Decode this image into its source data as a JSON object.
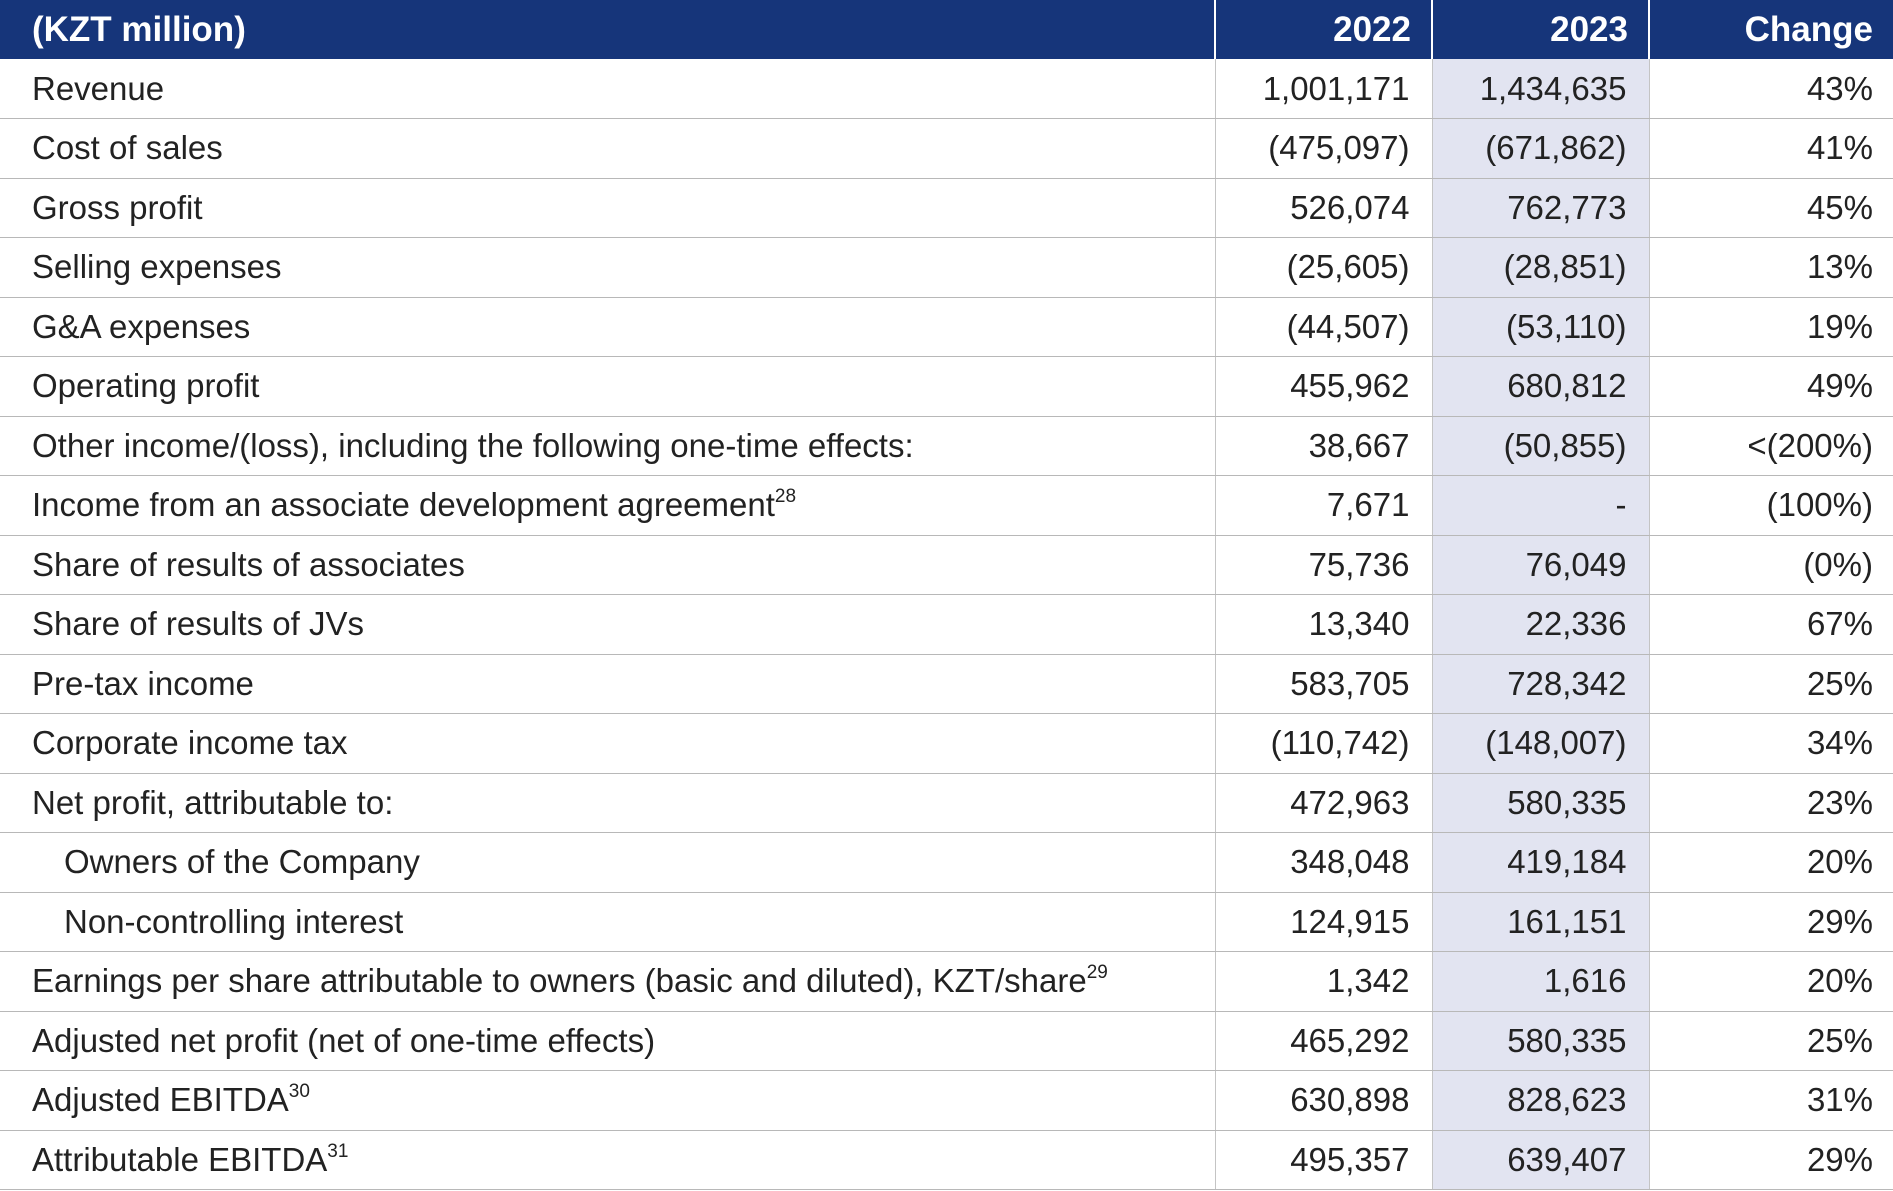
{
  "header": {
    "unit_label": "(KZT million)",
    "col_2022": "2022",
    "col_2023": "2023",
    "col_change": "Change"
  },
  "colors": {
    "header_bg": "#16357a",
    "highlight_col_bg": "#e2e4f1"
  },
  "rows": [
    {
      "label": "Revenue",
      "sup": "",
      "v2022": "1,001,171",
      "v2023": "1,434,635",
      "change": "43%",
      "indent": false
    },
    {
      "label": "Cost of sales",
      "sup": "",
      "v2022": "(475,097)",
      "v2023": "(671,862)",
      "change": "41%",
      "indent": false
    },
    {
      "label": "Gross profit",
      "sup": "",
      "v2022": "526,074",
      "v2023": "762,773",
      "change": "45%",
      "indent": false
    },
    {
      "label": "Selling expenses",
      "sup": "",
      "v2022": "(25,605)",
      "v2023": "(28,851)",
      "change": "13%",
      "indent": false
    },
    {
      "label": "G&A expenses",
      "sup": "",
      "v2022": "(44,507)",
      "v2023": "(53,110)",
      "change": "19%",
      "indent": false
    },
    {
      "label": "Operating profit",
      "sup": "",
      "v2022": "455,962",
      "v2023": "680,812",
      "change": "49%",
      "indent": false
    },
    {
      "label": "Other income/(loss), including the following one-time effects:",
      "sup": "",
      "v2022": "38,667",
      "v2023": "(50,855)",
      "change": "<(200%)",
      "indent": false
    },
    {
      "label": "Income from an associate development agreement",
      "sup": "28",
      "v2022": "7,671",
      "v2023": "-",
      "change": "(100%)",
      "indent": false
    },
    {
      "label": "Share of results of associates",
      "sup": "",
      "v2022": "75,736",
      "v2023": "76,049",
      "change": "(0%)",
      "indent": false
    },
    {
      "label": "Share of results of JVs",
      "sup": "",
      "v2022": "13,340",
      "v2023": "22,336",
      "change": "67%",
      "indent": false
    },
    {
      "label": "Pre-tax income",
      "sup": "",
      "v2022": "583,705",
      "v2023": "728,342",
      "change": "25%",
      "indent": false
    },
    {
      "label": "Corporate income tax",
      "sup": "",
      "v2022": "(110,742)",
      "v2023": "(148,007)",
      "change": "34%",
      "indent": false
    },
    {
      "label": "Net profit, attributable to:",
      "sup": "",
      "v2022": "472,963",
      "v2023": "580,335",
      "change": "23%",
      "indent": false
    },
    {
      "label": "Owners of the Company",
      "sup": "",
      "v2022": "348,048",
      "v2023": "419,184",
      "change": "20%",
      "indent": true
    },
    {
      "label": "Non-controlling interest",
      "sup": "",
      "v2022": "124,915",
      "v2023": "161,151",
      "change": "29%",
      "indent": true
    },
    {
      "label": "Earnings per share attributable to owners (basic and diluted), KZT/share",
      "sup": "29",
      "v2022": "1,342",
      "v2023": "1,616",
      "change": "20%",
      "indent": false
    },
    {
      "label": "Adjusted net profit (net of one-time effects)",
      "sup": "",
      "v2022": "465,292",
      "v2023": "580,335",
      "change": "25%",
      "indent": false
    },
    {
      "label": "Adjusted EBITDA",
      "sup": "30",
      "v2022": "630,898",
      "v2023": "828,623",
      "change": "31%",
      "indent": false
    },
    {
      "label": "Attributable EBITDA",
      "sup": "31",
      "v2022": "495,357",
      "v2023": "639,407",
      "change": "29%",
      "indent": false
    }
  ]
}
